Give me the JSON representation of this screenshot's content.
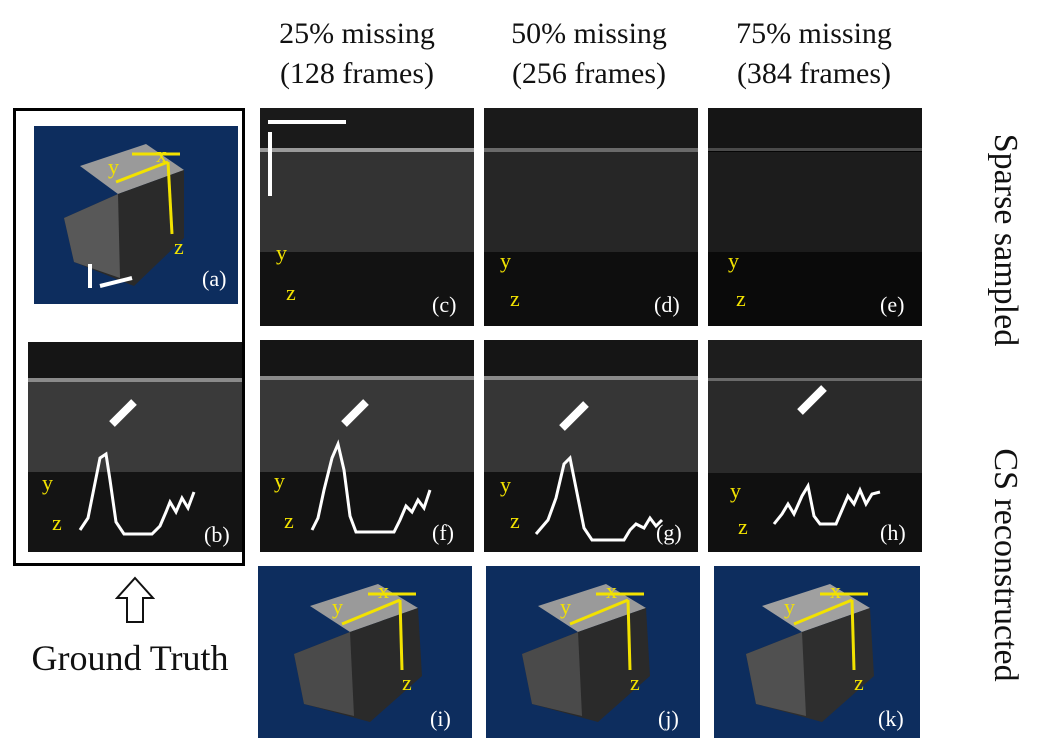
{
  "columns": [
    {
      "line1": "25% missing",
      "line2": "(128 frames)"
    },
    {
      "line1": "50% missing",
      "line2": "(256 frames)"
    },
    {
      "line1": "75% missing",
      "line2": "(384 frames)"
    }
  ],
  "row_labels": {
    "sparse": "Sparse sampled",
    "cs": "CS reconstructed"
  },
  "ground_truth_label": "Ground Truth",
  "panel_labels": {
    "a": "(a)",
    "b": "(b)",
    "c": "(c)",
    "d": "(d)",
    "e": "(e)",
    "f": "(f)",
    "g": "(g)",
    "h": "(h)",
    "i": "(i)",
    "j": "(j)",
    "k": "(k)"
  },
  "axis_labels": {
    "x": "x",
    "y": "y",
    "z": "z"
  },
  "colors": {
    "axis_yellow": "#f2e200",
    "volume_bg": "#0d2d5e"
  }
}
